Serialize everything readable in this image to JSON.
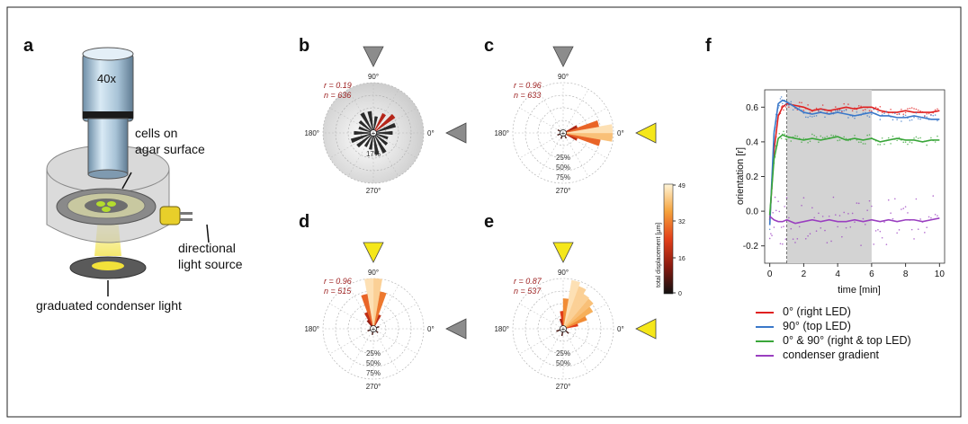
{
  "panels": {
    "a": {
      "letter": "a",
      "objective_label": "40x",
      "cells_label_1": "cells on",
      "cells_label_2": "agar surface",
      "light_label_1": "directional",
      "light_label_2": "light source",
      "condenser_label": "graduated condenser light"
    },
    "b": {
      "letter": "b",
      "r_text": "r = 0.19",
      "n_text": "n = 636",
      "scale_label": "17%",
      "light_top": "gray",
      "light_right": "gray"
    },
    "c": {
      "letter": "c",
      "r_text": "r = 0.96",
      "n_text": "n = 633",
      "scale_labels": [
        "25%",
        "50%",
        "75%"
      ],
      "light_top": "gray",
      "light_right": "yellow"
    },
    "d": {
      "letter": "d",
      "r_text": "r = 0.96",
      "n_text": "n = 515",
      "scale_labels": [
        "25%",
        "50%",
        "75%"
      ],
      "light_top": "yellow",
      "light_right": "gray"
    },
    "e": {
      "letter": "e",
      "r_text": "r = 0.87",
      "n_text": "n = 537",
      "scale_labels": [
        "25%",
        "50%"
      ],
      "light_top": "yellow",
      "light_right": "yellow"
    },
    "f": {
      "letter": "f"
    }
  },
  "angle_labels": {
    "top": "90°",
    "left": "180°",
    "right": "0°",
    "bottom": "270°"
  },
  "colorbar": {
    "label": "total displacement [µm]",
    "ticks": [
      "49",
      "32",
      "16",
      "0"
    ]
  },
  "colors": {
    "gray_triangle": "#8c8c8c",
    "yellow_triangle": "#f5e71a",
    "annotation_red": "#9b1c1c",
    "right_led": "#e02020",
    "top_led": "#3a78c9",
    "both_led": "#3aa63a",
    "condenser": "#9a3fc0"
  },
  "chart_data": {
    "type": "line",
    "title": "",
    "xlabel": "time [min]",
    "ylabel": "orientation [r]",
    "xlim": [
      -0.3,
      10.3
    ],
    "ylim": [
      -0.3,
      0.7
    ],
    "xticks": [
      "0",
      "2",
      "4",
      "6",
      "8",
      "10"
    ],
    "yticks": [
      "-0.2",
      "0.0",
      "0.2",
      "0.4",
      "0.6"
    ],
    "shaded_interval": [
      1,
      6
    ],
    "x": [
      0,
      0.25,
      0.5,
      0.75,
      1,
      1.5,
      2,
      2.5,
      3,
      3.5,
      4,
      4.5,
      5,
      5.5,
      6,
      6.5,
      7,
      7.5,
      8,
      8.5,
      9,
      9.5,
      10
    ],
    "series": [
      {
        "name": "0° (right LED)",
        "color": "#e02020",
        "values": [
          -0.05,
          0.35,
          0.55,
          0.6,
          0.62,
          0.61,
          0.6,
          0.58,
          0.59,
          0.58,
          0.59,
          0.6,
          0.59,
          0.6,
          0.6,
          0.58,
          0.57,
          0.57,
          0.58,
          0.57,
          0.57,
          0.57,
          0.58
        ]
      },
      {
        "name": "90° (top LED)",
        "color": "#3a78c9",
        "values": [
          -0.08,
          0.45,
          0.62,
          0.64,
          0.63,
          0.6,
          0.57,
          0.56,
          0.57,
          0.56,
          0.57,
          0.56,
          0.55,
          0.56,
          0.57,
          0.55,
          0.55,
          0.54,
          0.54,
          0.55,
          0.54,
          0.53,
          0.53
        ]
      },
      {
        "name": "0° & 90° (right & top LED)",
        "color": "#3aa63a",
        "values": [
          -0.02,
          0.3,
          0.42,
          0.44,
          0.43,
          0.42,
          0.41,
          0.42,
          0.41,
          0.42,
          0.43,
          0.41,
          0.42,
          0.41,
          0.42,
          0.4,
          0.41,
          0.42,
          0.41,
          0.41,
          0.4,
          0.41,
          0.41
        ]
      },
      {
        "name": "condenser gradient",
        "color": "#9a3fc0",
        "values": [
          -0.03,
          -0.05,
          -0.06,
          -0.06,
          -0.05,
          -0.07,
          -0.06,
          -0.05,
          -0.06,
          -0.05,
          -0.06,
          -0.06,
          -0.05,
          -0.06,
          -0.05,
          -0.06,
          -0.05,
          -0.06,
          -0.05,
          -0.05,
          -0.06,
          -0.05,
          -0.04
        ]
      }
    ],
    "legend_placement": "bottom"
  }
}
